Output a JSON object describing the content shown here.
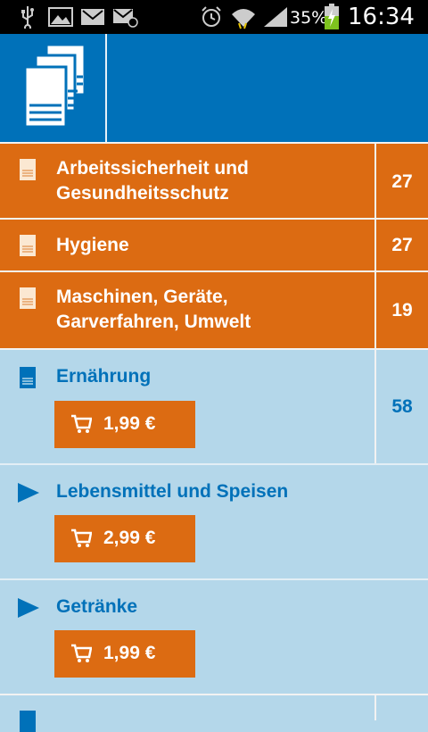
{
  "status_bar": {
    "battery": "35%",
    "time": "16:34"
  },
  "colors": {
    "header": "#0071b9",
    "orange": "#dc6b12",
    "light_blue": "#b4d7ea",
    "blue_text": "#0071b9"
  },
  "categories": [
    {
      "title_line1": "Arbeitssicherheit und",
      "title_line2": "Gesundheitsschutz",
      "count": "27",
      "icon": "document-icon"
    },
    {
      "title_line1": "Hygiene",
      "count": "27",
      "icon": "document-icon"
    },
    {
      "title_line1": "Maschinen, Geräte,",
      "title_line2": "Garverfahren, Umwelt",
      "count": "19",
      "icon": "document-icon"
    },
    {
      "title_line1": "Ernährung",
      "count": "58",
      "price": "1,99 €",
      "icon": "document-icon"
    },
    {
      "title_line1": "Lebensmittel und Speisen",
      "price": "2,99 €",
      "icon": "play-arrow-icon"
    },
    {
      "title_line1": "Getränke",
      "price": "1,99 €",
      "icon": "play-arrow-icon"
    }
  ]
}
